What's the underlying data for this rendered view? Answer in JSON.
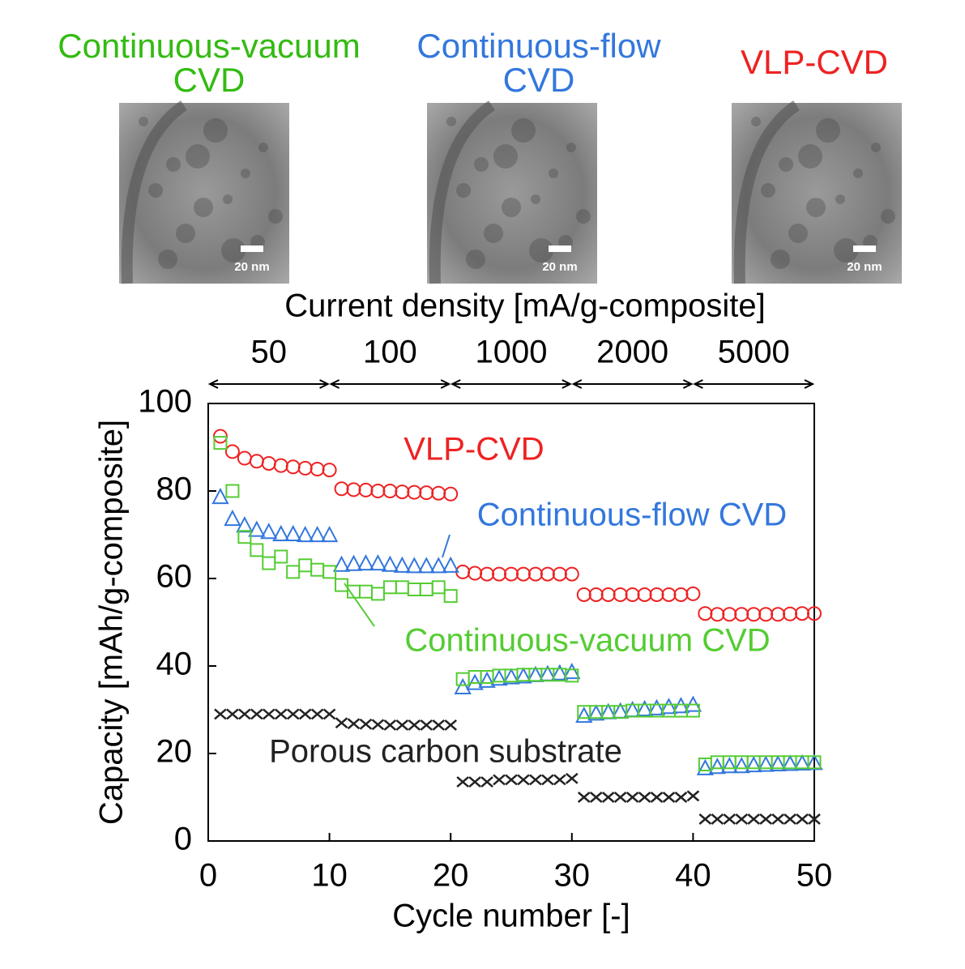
{
  "chart_data": {
    "type": "scatter",
    "images": [
      {
        "title_lines": [
          "Continuous-vacuum",
          "CVD"
        ],
        "color": "#33bb11",
        "scale_label": "20 nm"
      },
      {
        "title_lines": [
          "Continuous-flow",
          "CVD"
        ],
        "color": "#3377dd",
        "scale_label": "20 nm"
      },
      {
        "title_lines": [
          "VLP-CVD"
        ],
        "color": "#ee2222",
        "scale_label": "20 nm"
      }
    ],
    "top_axis_title": "Current density [mA/g-composite]",
    "top_segments": [
      "50",
      "100",
      "1000",
      "2000",
      "5000"
    ],
    "xlabel": "Cycle number [-]",
    "ylabel": "Capacity [mAh/g-composite]",
    "x": [
      1,
      2,
      3,
      4,
      5,
      6,
      7,
      8,
      9,
      10,
      11,
      12,
      13,
      14,
      15,
      16,
      17,
      18,
      19,
      20,
      21,
      22,
      23,
      24,
      25,
      26,
      27,
      28,
      29,
      30,
      31,
      32,
      33,
      34,
      35,
      36,
      37,
      38,
      39,
      40,
      41,
      42,
      43,
      44,
      45,
      46,
      47,
      48,
      49,
      50
    ],
    "series": [
      {
        "name": "VLP-CVD",
        "color": "#ee2222",
        "marker": "circle",
        "values": [
          92.5,
          89,
          87.5,
          86.8,
          86.3,
          85.8,
          85.5,
          85.2,
          85,
          84.8,
          80.5,
          80.3,
          80.2,
          80,
          80,
          79.8,
          79.7,
          79.6,
          79.5,
          79.3,
          61.5,
          61.2,
          61,
          61,
          61,
          61,
          61,
          61,
          61,
          61,
          56.3,
          56.3,
          56.3,
          56.3,
          56.3,
          56.3,
          56.3,
          56.3,
          56.3,
          56.5,
          52,
          51.8,
          51.8,
          51.8,
          51.8,
          51.8,
          51.8,
          51.9,
          52,
          52
        ]
      },
      {
        "name": "Continuous-flow CVD",
        "color": "#3377dd",
        "marker": "triangle",
        "values": [
          78.5,
          73.5,
          72,
          71,
          70.5,
          70,
          70,
          69.8,
          69.8,
          69.8,
          63,
          63.2,
          63.3,
          63.3,
          63,
          62.8,
          62.7,
          62.7,
          62.7,
          62.8,
          35,
          36,
          36.5,
          37,
          37.3,
          37.5,
          37.8,
          38,
          38.2,
          38.5,
          28.5,
          29,
          29.3,
          29.5,
          29.8,
          30,
          30.2,
          30.5,
          30.7,
          31,
          16.5,
          16.8,
          17,
          17,
          17.2,
          17.3,
          17.4,
          17.5,
          17.6,
          17.7
        ]
      },
      {
        "name": "Continuous-vacuum CVD",
        "color": "#55cc33",
        "marker": "square",
        "values": [
          91,
          80,
          69.5,
          66.5,
          63.5,
          65,
          61.5,
          63,
          62,
          61.5,
          58.5,
          57,
          57,
          56.5,
          58,
          58,
          57.5,
          57.5,
          58,
          56,
          37,
          37.5,
          37.5,
          37.8,
          37.8,
          38,
          38,
          38,
          38,
          37.8,
          29.5,
          29.5,
          29.5,
          29.5,
          29.8,
          29.8,
          29.8,
          29.8,
          29.8,
          29.8,
          17.5,
          18,
          18,
          18,
          18,
          18,
          18,
          18,
          18,
          18
        ]
      },
      {
        "name": "Porous carbon substrate",
        "color": "#222222",
        "marker": "x",
        "values": [
          29,
          29,
          29,
          29,
          29,
          29,
          29,
          29,
          29,
          29,
          27,
          26.8,
          26.7,
          26.6,
          26.5,
          26.5,
          26.5,
          26.5,
          26.5,
          26.5,
          13.5,
          13.5,
          13.5,
          14,
          14,
          14,
          14,
          14,
          14,
          14.3,
          10,
          10,
          10,
          10,
          10,
          10,
          10,
          10,
          10,
          10.3,
          5,
          5,
          5,
          5,
          5,
          5,
          5,
          5,
          5,
          5
        ]
      }
    ],
    "xlim": [
      0,
      50
    ],
    "xticks": [
      0,
      10,
      20,
      30,
      40,
      50
    ],
    "ylim": [
      0,
      100
    ],
    "yticks": [
      0,
      20,
      40,
      60,
      80,
      100
    ]
  }
}
